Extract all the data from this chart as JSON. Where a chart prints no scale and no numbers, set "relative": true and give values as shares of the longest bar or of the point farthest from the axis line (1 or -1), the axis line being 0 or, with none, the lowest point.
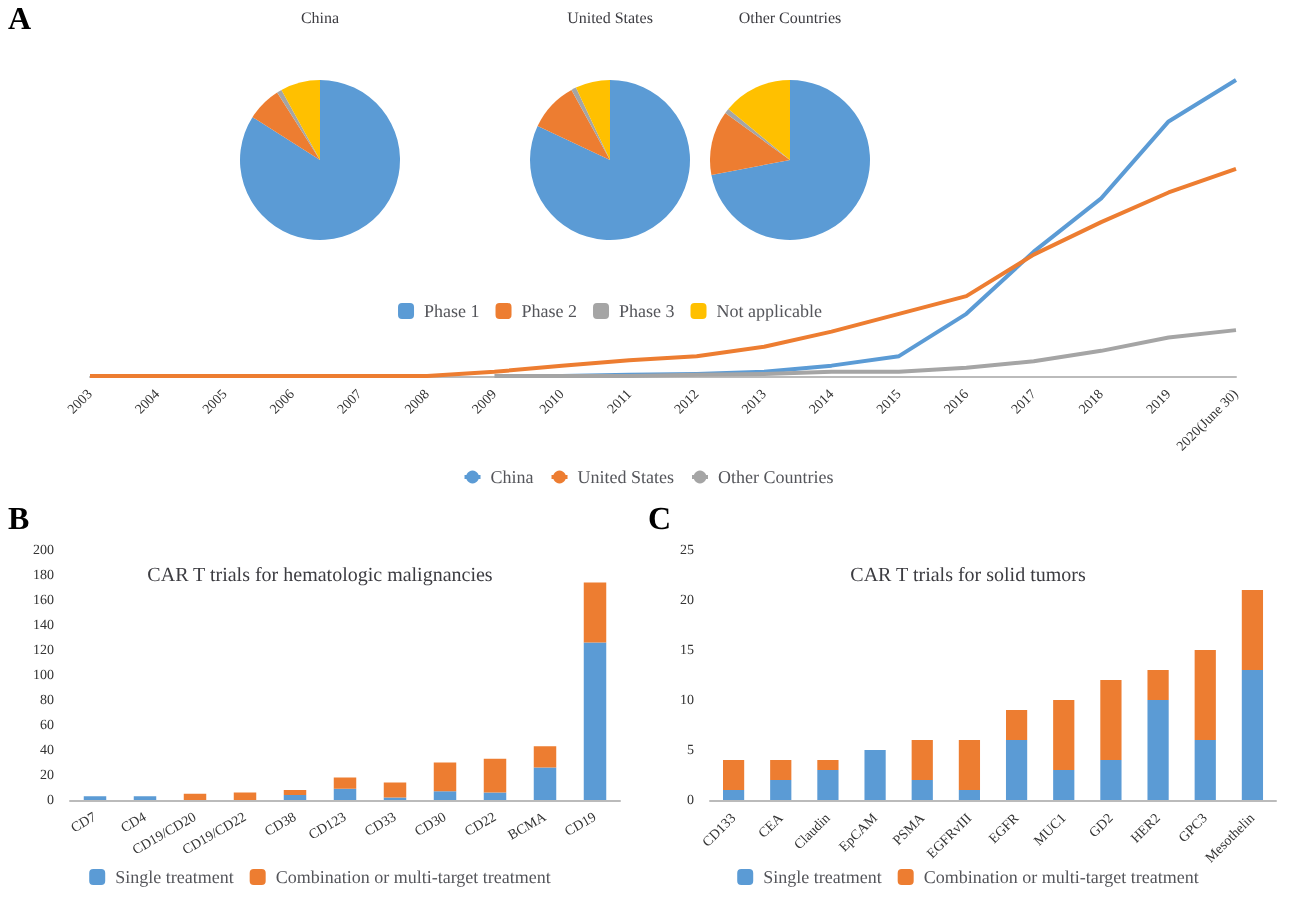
{
  "chart_data": [
    {
      "type": "line",
      "relative": true,
      "annotations": [
        "A"
      ],
      "categories": [
        "2003",
        "2004",
        "2005",
        "2006",
        "2007",
        "2008",
        "2009",
        "2010",
        "2011",
        "2012",
        "2013",
        "2014",
        "2015",
        "2016",
        "2017",
        "2018",
        "2019",
        "2020(June 30)"
      ],
      "legend": "bottom",
      "marker": "none",
      "grid": false,
      "series": [
        {
          "name": "China",
          "color": "#5b9bd5",
          "values": [
            null,
            null,
            null,
            null,
            null,
            null,
            null,
            0,
            0.004,
            0.007,
            0.014,
            0.035,
            0.067,
            0.21,
            0.42,
            0.6,
            0.86,
            1
          ]
        },
        {
          "name": "United States",
          "color": "#ed7d31",
          "values": [
            0,
            0,
            0,
            0,
            0,
            0,
            0.014,
            0.035,
            0.053,
            0.067,
            0.099,
            0.15,
            0.21,
            0.27,
            0.41,
            0.52,
            0.62,
            0.7
          ]
        },
        {
          "name": "Other Countries",
          "color": "#a5a5a5",
          "values": [
            null,
            null,
            null,
            null,
            null,
            null,
            0,
            0,
            0,
            0.004,
            0.007,
            0.014,
            0.014,
            0.028,
            0.05,
            0.085,
            0.13,
            0.155
          ]
        }
      ]
    },
    {
      "type": "pie",
      "title": "China",
      "categories": [
        null,
        null,
        null,
        null
      ],
      "values": [
        84,
        7,
        1,
        8
      ],
      "colors": [
        "#5b9bd5",
        "#ed7d31",
        "#a5a5a5",
        "#ffc000"
      ],
      "legend": false
    },
    {
      "type": "pie",
      "title": "United States",
      "categories": [
        "Phase 1",
        "Phase 2",
        "Phase 3",
        "Not applicable"
      ],
      "values": [
        82,
        10,
        1,
        7
      ],
      "colors": [
        "#5b9bd5",
        "#ed7d31",
        "#a5a5a5",
        "#ffc000"
      ],
      "legend": "bottom"
    },
    {
      "type": "pie",
      "title": "Other Countries",
      "categories": [
        null,
        null,
        null,
        null
      ],
      "values": [
        72,
        13,
        1,
        14
      ],
      "colors": [
        "#5b9bd5",
        "#ed7d31",
        "#a5a5a5",
        "#ffc000"
      ],
      "legend": false
    },
    {
      "type": "bar",
      "stacked": true,
      "title": "CAR T trials for hematologic malignancies",
      "annotations": [
        "B"
      ],
      "categories": [
        "CD7",
        "CD4",
        "CD19/CD20",
        "CD19/CD22",
        "CD38",
        "CD123",
        "CD33",
        "CD30",
        "CD22",
        "BCMA",
        "CD19"
      ],
      "ylim": [
        0,
        200
      ],
      "yticks": [
        0,
        20,
        40,
        60,
        80,
        100,
        120,
        140,
        160,
        180,
        200
      ],
      "legend": "bottom",
      "grid": false,
      "series": [
        {
          "name": "Single treatment",
          "color": "#5b9bd5",
          "values": [
            3,
            3,
            0,
            0,
            4,
            9,
            2,
            7,
            6,
            26,
            126
          ]
        },
        {
          "name": "Combination or multi-target treatment",
          "color": "#ed7d31",
          "values": [
            0,
            0,
            5,
            6,
            4,
            9,
            12,
            23,
            27,
            17,
            48
          ]
        }
      ]
    },
    {
      "type": "bar",
      "stacked": true,
      "title": "CAR T trials for solid tumors",
      "annotations": [
        "C"
      ],
      "categories": [
        "CD133",
        "CEA",
        "Claudin",
        "EpCAM",
        "PSMA",
        "EGFRvIII",
        "EGFR",
        "MUC1",
        "GD2",
        "HER2",
        "GPC3",
        "Mesothelin"
      ],
      "ylim": [
        0,
        25
      ],
      "yticks": [
        0,
        5,
        10,
        15,
        20,
        25
      ],
      "legend": "bottom",
      "grid": false,
      "series": [
        {
          "name": "Single treatment",
          "color": "#5b9bd5",
          "values": [
            1,
            2,
            3,
            5,
            2,
            1,
            6,
            3,
            4,
            10,
            6,
            13
          ]
        },
        {
          "name": "Combination or multi-target treatment",
          "color": "#ed7d31",
          "values": [
            3,
            2,
            1,
            0,
            4,
            5,
            3,
            7,
            8,
            3,
            9,
            8
          ]
        }
      ]
    }
  ]
}
